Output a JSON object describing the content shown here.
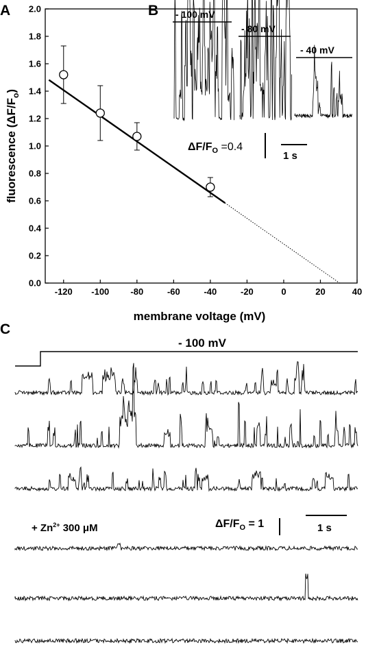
{
  "panels": {
    "a": "A",
    "b": "B",
    "c": "C"
  },
  "chart_data": [
    {
      "type": "scatter",
      "title": "",
      "xlabel": "membrane voltage (mV)",
      "ylabel_main": "fluorescence (ΔF/F",
      "ylabel_sub": "o",
      "ylabel_end": ")",
      "xlim": [
        -130,
        40
      ],
      "ylim": [
        0.0,
        2.0
      ],
      "x_ticks": [
        -120,
        -100,
        -80,
        -60,
        -40,
        -20,
        0,
        20,
        40
      ],
      "y_ticks": [
        0.0,
        0.2,
        0.4,
        0.6,
        0.8,
        1.0,
        1.2,
        1.4,
        1.6,
        1.8,
        2.0
      ],
      "y_tick_labels": [
        "0.0",
        "0.2",
        "0.4",
        "0.6",
        "0.8",
        "1.0",
        "1.2",
        "1.4",
        "1.6",
        "1.8",
        "2.0"
      ],
      "points": [
        {
          "x": -120,
          "y": 1.52,
          "err": 0.21
        },
        {
          "x": -100,
          "y": 1.24,
          "err": 0.2
        },
        {
          "x": -80,
          "y": 1.07,
          "err": 0.1
        },
        {
          "x": -40,
          "y": 0.7,
          "err": 0.07
        }
      ],
      "fit_line": {
        "x_start": -128,
        "x_solid_end": -32,
        "x_end": 31,
        "slope": -0.00935,
        "intercept": 0.285
      }
    }
  ],
  "panel_b": {
    "labels": [
      "- 100 mV",
      "- 80 mV",
      "- 40 mV"
    ],
    "scale_label_main": "ΔF/F",
    "scale_label_sub": "O",
    "scale_label_value": " =0.4",
    "time_label": "1 s"
  },
  "panel_c": {
    "voltage_label": "- 100 mV",
    "zn_label_prefix": "+ Zn",
    "zn_label_sup": "2+",
    "zn_label_conc": " 300 μM",
    "scale_label_main": "ΔF/F",
    "scale_label_sub": "O",
    "scale_label_value": " = 1",
    "time_label": "1 s"
  }
}
